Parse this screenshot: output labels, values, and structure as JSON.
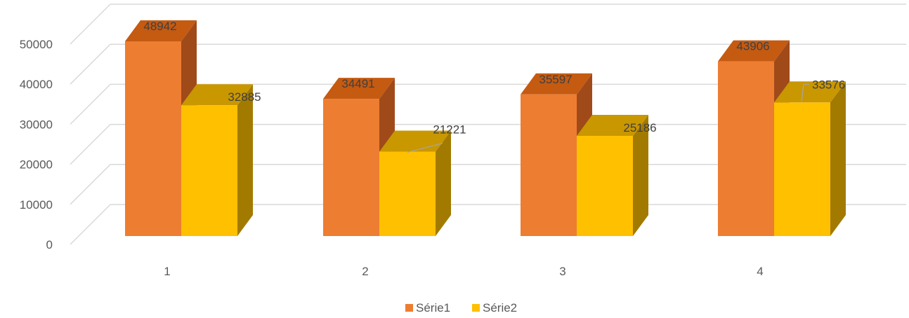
{
  "chart_data": {
    "type": "bar",
    "categories": [
      "1",
      "2",
      "3",
      "4"
    ],
    "series": [
      {
        "name": "Série1",
        "values": [
          48942,
          34491,
          35597,
          43906
        ],
        "color": "#ED7D31",
        "side_color": "#A04A1A",
        "top_color": "#C55A11"
      },
      {
        "name": "Série2",
        "values": [
          32885,
          21221,
          25186,
          33576
        ],
        "color": "#FFC000",
        "side_color": "#A37A00",
        "top_color": "#C99700"
      }
    ],
    "title": "",
    "xlabel": "",
    "ylabel": "",
    "ylim": [
      0,
      50000
    ],
    "yticks": [
      "0",
      "10000",
      "20000",
      "30000",
      "40000",
      "50000"
    ],
    "grid": true,
    "legend_position": "bottom",
    "gridline_color": "#D9D9D9",
    "style": "3d-clustered-column"
  }
}
